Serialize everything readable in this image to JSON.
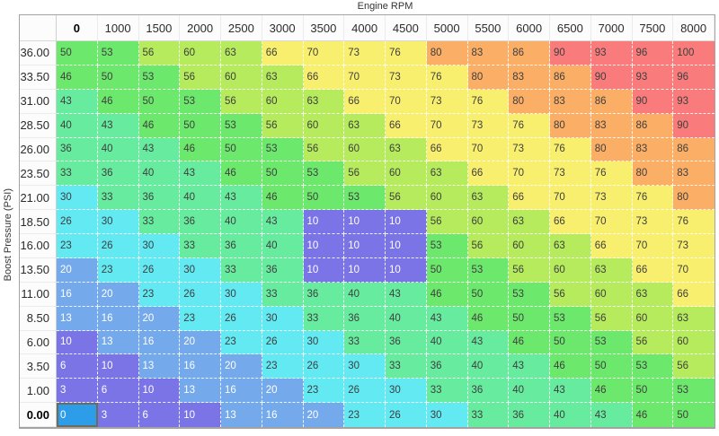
{
  "page": {
    "background": "#ffffff"
  },
  "chart_data": {
    "type": "heatmap",
    "title": "",
    "xlabel": "Engine RPM",
    "ylabel": "Boost Pressure (PSI)",
    "x_categories": [
      "0",
      "1000",
      "1500",
      "2000",
      "2500",
      "3000",
      "3500",
      "4000",
      "4500",
      "5000",
      "5500",
      "6000",
      "6500",
      "7000",
      "7500",
      "8000"
    ],
    "y_categories": [
      "36.00",
      "33.50",
      "31.00",
      "28.50",
      "26.00",
      "23.50",
      "21.00",
      "18.50",
      "16.00",
      "13.50",
      "11.00",
      "8.50",
      "6.00",
      "3.50",
      "1.00",
      "0.00"
    ],
    "values": [
      [
        50,
        53,
        56,
        60,
        63,
        66,
        70,
        73,
        76,
        80,
        83,
        86,
        90,
        93,
        96,
        100
      ],
      [
        46,
        50,
        53,
        56,
        60,
        63,
        66,
        70,
        73,
        76,
        80,
        83,
        86,
        90,
        93,
        96
      ],
      [
        43,
        46,
        50,
        53,
        56,
        60,
        63,
        66,
        70,
        73,
        76,
        80,
        83,
        86,
        90,
        93
      ],
      [
        40,
        43,
        46,
        50,
        53,
        56,
        60,
        63,
        66,
        70,
        73,
        76,
        80,
        83,
        86,
        90
      ],
      [
        36,
        40,
        43,
        46,
        50,
        53,
        56,
        60,
        63,
        66,
        70,
        73,
        76,
        80,
        83,
        86
      ],
      [
        33,
        36,
        40,
        43,
        46,
        50,
        53,
        56,
        60,
        63,
        66,
        70,
        73,
        76,
        80,
        83
      ],
      [
        30,
        33,
        36,
        40,
        43,
        46,
        50,
        53,
        56,
        60,
        63,
        66,
        70,
        73,
        76,
        80
      ],
      [
        26,
        30,
        33,
        36,
        40,
        43,
        10,
        10,
        10,
        56,
        60,
        63,
        66,
        70,
        73,
        76
      ],
      [
        23,
        26,
        30,
        33,
        36,
        40,
        10,
        10,
        10,
        53,
        56,
        60,
        63,
        66,
        70,
        73
      ],
      [
        20,
        23,
        26,
        30,
        33,
        36,
        10,
        10,
        10,
        50,
        53,
        56,
        60,
        63,
        66,
        70
      ],
      [
        16,
        20,
        23,
        26,
        30,
        33,
        36,
        40,
        43,
        46,
        50,
        53,
        56,
        60,
        63,
        66
      ],
      [
        13,
        16,
        20,
        23,
        26,
        30,
        33,
        36,
        40,
        43,
        46,
        50,
        53,
        56,
        60,
        63
      ],
      [
        10,
        13,
        16,
        20,
        23,
        26,
        30,
        33,
        36,
        40,
        43,
        46,
        50,
        53,
        56,
        60
      ],
      [
        6,
        10,
        13,
        16,
        20,
        23,
        26,
        30,
        33,
        36,
        40,
        43,
        46,
        50,
        53,
        56
      ],
      [
        3,
        6,
        10,
        13,
        16,
        20,
        23,
        26,
        30,
        33,
        36,
        40,
        43,
        46,
        50,
        53
      ],
      [
        0,
        3,
        6,
        10,
        13,
        16,
        20,
        23,
        26,
        30,
        33,
        36,
        40,
        43,
        46,
        50
      ]
    ],
    "selected_cell": {
      "row_label": "0.00",
      "col_label": "0",
      "value": 0,
      "background": "#2e9de9",
      "border": "#6b6b5e",
      "text_color": "#ffffff"
    },
    "color_scale": [
      {
        "max": 10,
        "background": "#7b74e6",
        "text": "#ffffff",
        "name": "purple"
      },
      {
        "max": 20,
        "background": "#74a9ec",
        "text": "#ffffff",
        "name": "blue"
      },
      {
        "max": 30,
        "background": "#62e9f2",
        "text": "#3f3f3f",
        "name": "cyan"
      },
      {
        "max": 43,
        "background": "#67eb9f",
        "text": "#3f3f3f",
        "name": "mint"
      },
      {
        "max": 53,
        "background": "#6ce86c",
        "text": "#3f3f3f",
        "name": "green"
      },
      {
        "max": 63,
        "background": "#b5eb5c",
        "text": "#3f3f3f",
        "name": "yellow-green"
      },
      {
        "max": 76,
        "background": "#f9ef6e",
        "text": "#3f3f3f",
        "name": "yellow"
      },
      {
        "max": 86,
        "background": "#fbae65",
        "text": "#3f3f3f",
        "name": "orange"
      },
      {
        "max": 100,
        "background": "#f97b7b",
        "text": "#3f3f3f",
        "name": "red"
      }
    ],
    "grid": {
      "line_color": "#ffffff",
      "line_style": "dashed"
    },
    "legend": "none",
    "axis_ranges": {
      "x": [
        0,
        8000
      ],
      "y": [
        0,
        36
      ]
    }
  },
  "table_frame": {
    "border_color": "#a3a3a3",
    "header_background": "#fcfcfc",
    "header_text": "#2b2b2b",
    "header_separator": "#ebebeb",
    "header_divider": "#cfcfcf"
  }
}
